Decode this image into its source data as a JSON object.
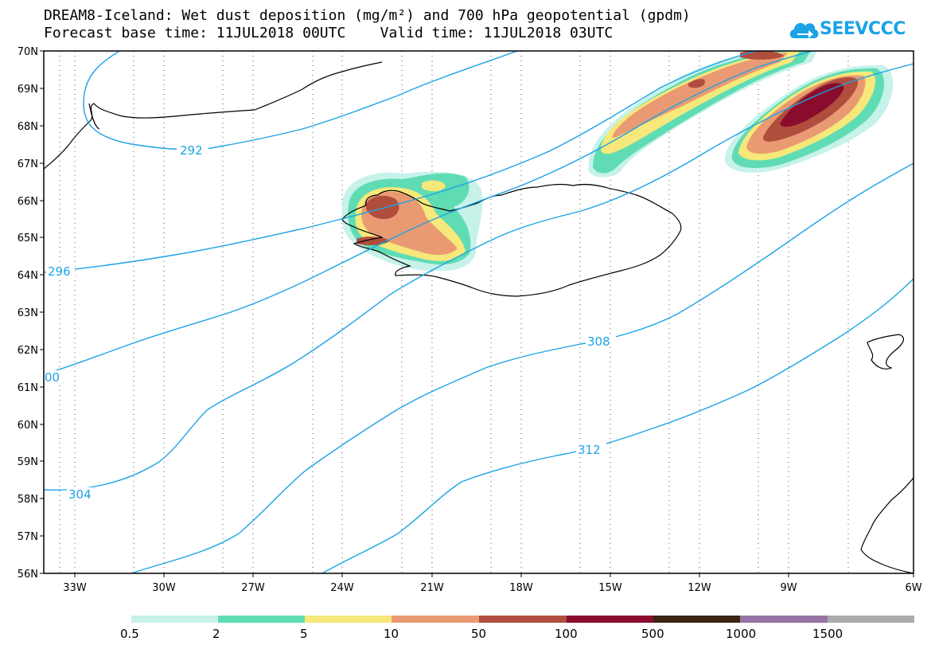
{
  "title": {
    "line1": "DREAM8-Iceland: Wet dust deposition (mg/m²) and 700 hPa geopotential (gpdm)",
    "line2": "Forecast base time: 11JUL2018 00UTC    Valid time: 11JUL2018 03UTC"
  },
  "logo": {
    "text": "SEEVCCC",
    "icon": "cloud-arrow-icon",
    "color": "#1ca3e6"
  },
  "map": {
    "lat_labels": [
      "70N",
      "69N",
      "68N",
      "67N",
      "66N",
      "65N",
      "64N",
      "63N",
      "62N",
      "61N",
      "60N",
      "59N",
      "58N",
      "57N",
      "56N"
    ],
    "lon_labels": [
      "33W",
      "30W",
      "27W",
      "24W",
      "21W",
      "18W",
      "15W",
      "12W",
      "9W",
      "6W"
    ],
    "contour_color": "#1ca3e6",
    "contour_labels": [
      "292",
      "296",
      "00",
      "304",
      "308",
      "312"
    ]
  },
  "legend": {
    "colors": [
      "#c6f2ea",
      "#5fdcb4",
      "#f6e87a",
      "#ea9a72",
      "#b04e3e",
      "#8a0c2c",
      "#3a2414",
      "#9674a6",
      "#aaaaaa"
    ],
    "labels": [
      "0.5",
      "2",
      "5",
      "10",
      "50",
      "100",
      "500",
      "1000",
      "1500"
    ]
  }
}
